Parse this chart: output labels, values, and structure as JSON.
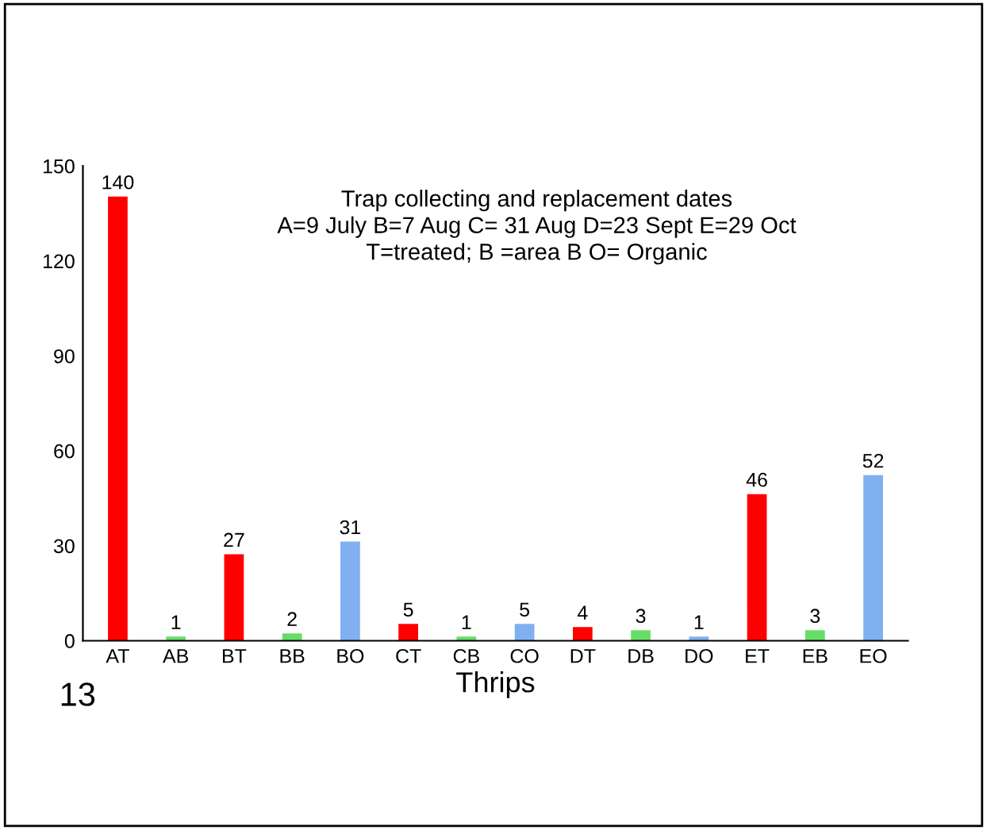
{
  "chart_data": {
    "type": "bar",
    "xlabel": "Thrips",
    "categories": [
      "AT",
      "AB",
      "BT",
      "BB",
      "BO",
      "CT",
      "CB",
      "CO",
      "DT",
      "DB",
      "DO",
      "ET",
      "EB",
      "EO"
    ],
    "values": [
      140,
      1,
      27,
      2,
      31,
      5,
      1,
      5,
      4,
      3,
      1,
      46,
      3,
      52
    ],
    "colors": [
      "#ff0000",
      "#66dd66",
      "#ff0000",
      "#66dd66",
      "#80b0f0",
      "#ff0000",
      "#66dd66",
      "#80b0f0",
      "#ff0000",
      "#66dd66",
      "#80b0f0",
      "#ff0000",
      "#66dd66",
      "#80b0f0"
    ],
    "ylim": [
      0,
      150
    ],
    "yticks": [
      0,
      30,
      60,
      90,
      120,
      150
    ],
    "data_labels": true,
    "grid": false,
    "legend": false,
    "annotations": [
      "Trap collecting and replacement dates",
      "A=9 July B=7 Aug C= 31 Aug D=23 Sept E=29 Oct",
      "T=treated; B =area B O= Organic",
      "13"
    ]
  }
}
